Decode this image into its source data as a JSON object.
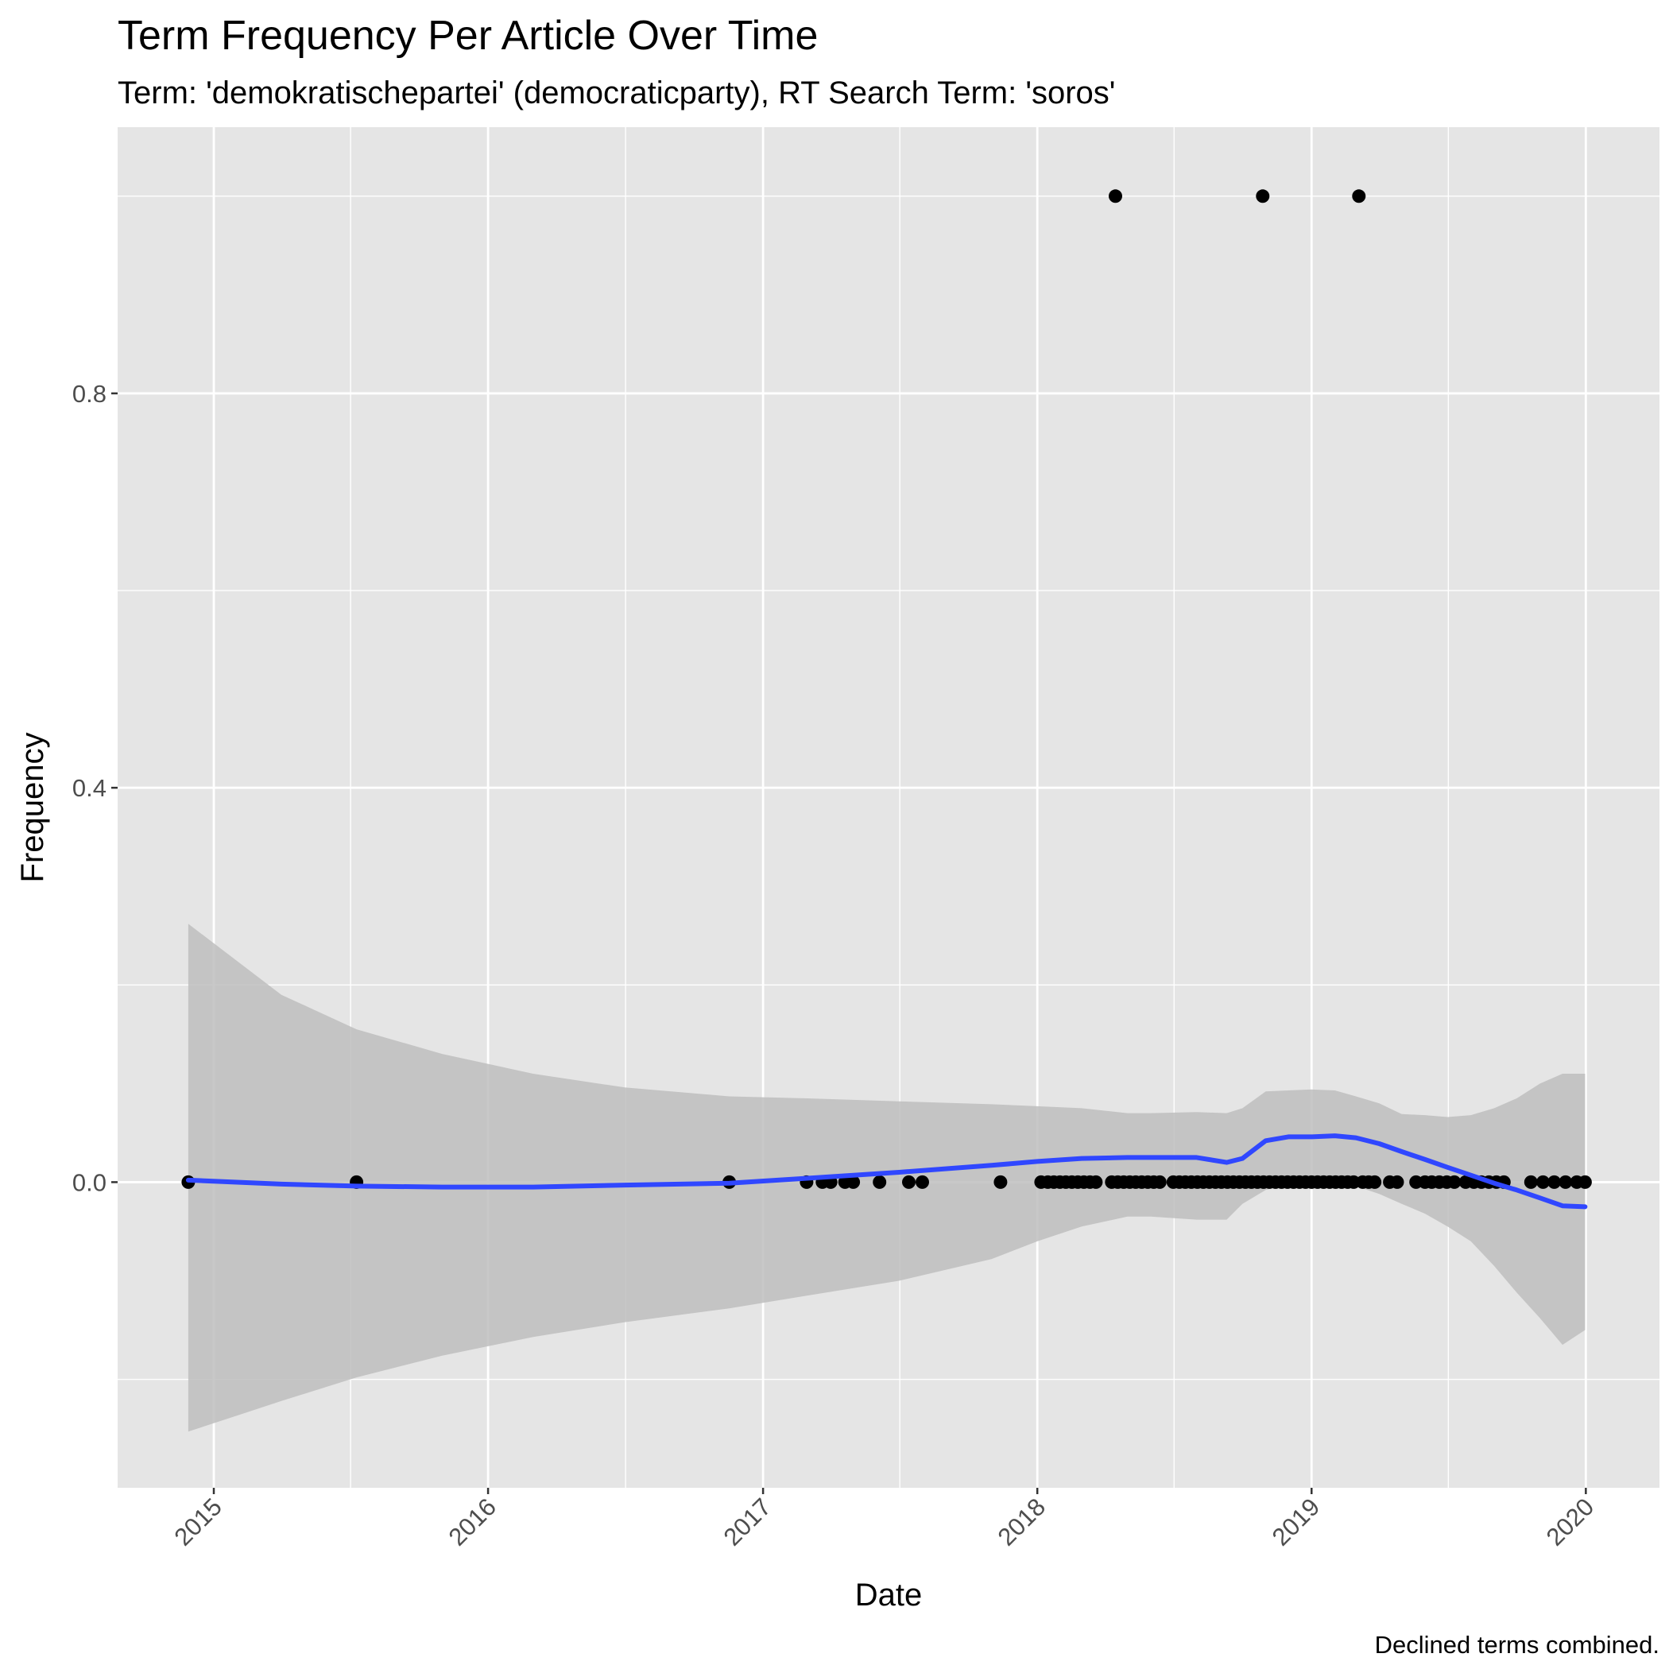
{
  "chart_data": {
    "type": "scatter",
    "title": "Term Frequency Per Article Over Time",
    "subtitle": "Term: 'demokratischepartei' (democraticparty), RT Search Term: 'soros'",
    "xlabel": "Date",
    "ylabel": "Frequency",
    "caption": "Declined terms combined.",
    "x_ticks": [
      "2015",
      "2016",
      "2017",
      "2018",
      "2019",
      "2020"
    ],
    "y_ticks": [
      "0.0",
      "0.4",
      "0.8"
    ],
    "xlim": [
      "2014-08-26",
      "2020-04-08"
    ],
    "ylim": [
      -0.31,
      1.07
    ],
    "grid": true,
    "colors": {
      "panel": "#e5e5e5",
      "grid": "#ffffff",
      "points": "#000000",
      "smooth_line": "#3047ff",
      "ribbon": "#bebebe"
    },
    "points": {
      "x": [
        "2014-11-28",
        "2015-07-10",
        "2016-11-17",
        "2017-02-28",
        "2017-03-21",
        "2017-04-01",
        "2017-04-20",
        "2017-05-01",
        "2017-06-05",
        "2017-07-14",
        "2017-08-01",
        "2017-11-13",
        "2018-01-06",
        "2018-01-15",
        "2018-01-23",
        "2018-01-31",
        "2018-02-08",
        "2018-02-16",
        "2018-02-24",
        "2018-03-04",
        "2018-03-12",
        "2018-03-20",
        "2018-04-10",
        "2018-04-18",
        "2018-04-26",
        "2018-05-04",
        "2018-05-12",
        "2018-05-20",
        "2018-05-28",
        "2018-06-05",
        "2018-06-13",
        "2018-07-01",
        "2018-07-09",
        "2018-07-17",
        "2018-07-25",
        "2018-08-02",
        "2018-08-10",
        "2018-08-18",
        "2018-08-26",
        "2018-09-03",
        "2018-09-11",
        "2018-09-19",
        "2018-09-27",
        "2018-10-05",
        "2018-10-13",
        "2018-10-21",
        "2018-10-29",
        "2018-11-06",
        "2018-11-14",
        "2018-11-22",
        "2018-11-30",
        "2018-12-08",
        "2018-12-16",
        "2018-12-24",
        "2019-01-01",
        "2019-01-09",
        "2019-01-17",
        "2019-01-25",
        "2019-02-02",
        "2019-02-10",
        "2019-02-18",
        "2019-02-26",
        "2019-03-10",
        "2019-03-18",
        "2019-03-26",
        "2019-04-15",
        "2019-04-25",
        "2019-05-20",
        "2019-06-01",
        "2019-06-10",
        "2019-06-20",
        "2019-06-30",
        "2019-07-10",
        "2019-07-25",
        "2019-08-05",
        "2019-08-15",
        "2019-08-25",
        "2019-09-04",
        "2019-09-14",
        "2019-10-20",
        "2019-11-05",
        "2019-11-20",
        "2019-12-05",
        "2019-12-20",
        "2019-12-31",
        "2018-04-15",
        "2018-10-28",
        "2019-03-05"
      ],
      "y": [
        0,
        0,
        0,
        0,
        0,
        0,
        0,
        0,
        0,
        0,
        0,
        0,
        0,
        0,
        0,
        0,
        0,
        0,
        0,
        0,
        0,
        0,
        0,
        0,
        0,
        0,
        0,
        0,
        0,
        0,
        0,
        0,
        0,
        0,
        0,
        0,
        0,
        0,
        0,
        0,
        0,
        0,
        0,
        0,
        0,
        0,
        0,
        0,
        0,
        0,
        0,
        0,
        0,
        0,
        0,
        0,
        0,
        0,
        0,
        0,
        0,
        0,
        0,
        0,
        0,
        0,
        0,
        0,
        0,
        0,
        0,
        0,
        0,
        0,
        0,
        0,
        0,
        0,
        0,
        0,
        0,
        0,
        0,
        0,
        0,
        1,
        1,
        1
      ]
    },
    "smooth": {
      "x": [
        "2014-11-28",
        "2015-04-01",
        "2015-07-10",
        "2015-11-01",
        "2016-03-01",
        "2016-07-01",
        "2016-11-17",
        "2017-03-01",
        "2017-07-01",
        "2017-11-01",
        "2018-01-01",
        "2018-03-01",
        "2018-05-01",
        "2018-06-01",
        "2018-08-01",
        "2018-09-10",
        "2018-10-01",
        "2018-11-01",
        "2018-12-01",
        "2019-01-01",
        "2019-02-01",
        "2019-03-01",
        "2019-04-01",
        "2019-05-01",
        "2019-06-01",
        "2019-07-01",
        "2019-08-01",
        "2019-09-01",
        "2019-10-01",
        "2019-11-01",
        "2019-12-01",
        "2019-12-31"
      ],
      "y": [
        0.002,
        -0.002,
        -0.004,
        -0.005,
        -0.005,
        -0.003,
        -0.001,
        0.004,
        0.01,
        0.017,
        0.021,
        0.024,
        0.025,
        0.025,
        0.025,
        0.02,
        0.024,
        0.042,
        0.046,
        0.046,
        0.047,
        0.045,
        0.039,
        0.031,
        0.023,
        0.015,
        0.007,
        -0.001,
        -0.008,
        -0.016,
        -0.024,
        -0.025
      ],
      "ymin": [
        -0.253,
        -0.222,
        -0.198,
        -0.176,
        -0.157,
        -0.142,
        -0.128,
        -0.115,
        -0.1,
        -0.078,
        -0.06,
        -0.045,
        -0.035,
        -0.035,
        -0.038,
        -0.038,
        -0.022,
        -0.008,
        -0.002,
        0.0,
        0.0,
        -0.004,
        -0.012,
        -0.022,
        -0.032,
        -0.045,
        -0.06,
        -0.085,
        -0.112,
        -0.138,
        -0.165,
        -0.15
      ],
      "ymax": [
        0.262,
        0.19,
        0.155,
        0.13,
        0.11,
        0.096,
        0.087,
        0.085,
        0.082,
        0.079,
        0.077,
        0.075,
        0.07,
        0.07,
        0.071,
        0.07,
        0.075,
        0.092,
        0.093,
        0.094,
        0.093,
        0.087,
        0.08,
        0.069,
        0.068,
        0.066,
        0.068,
        0.075,
        0.085,
        0.1,
        0.11,
        0.11
      ]
    }
  }
}
